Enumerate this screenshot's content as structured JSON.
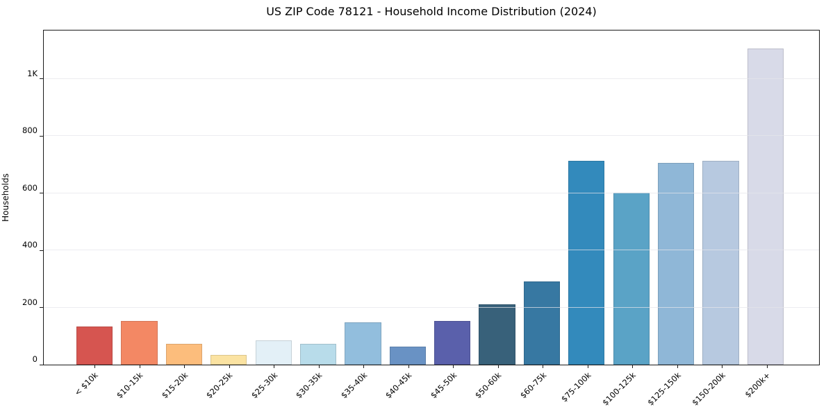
{
  "chart_data": {
    "type": "bar",
    "title": "US ZIP Code 78121 - Household Income Distribution (2024)",
    "xlabel": "",
    "ylabel": "Households",
    "categories": [
      "< $10k",
      "$10-15k",
      "$15-20k",
      "$20-25k",
      "$25-30k",
      "$30-35k",
      "$35-40k",
      "$40-45k",
      "$45-50k",
      "$50-60k",
      "$60-75k",
      "$75-100k",
      "$100-125k",
      "$125-150k",
      "$150-200k",
      "$200k+"
    ],
    "values": [
      133,
      152,
      74,
      34,
      86,
      73,
      149,
      63,
      153,
      211,
      291,
      714,
      601,
      706,
      713,
      1106
    ],
    "bar_colors": [
      "#d65550",
      "#f38864",
      "#fcbd7c",
      "#fbe3a2",
      "#e3f0f7",
      "#b8dcea",
      "#92bedd",
      "#6992c4",
      "#5a60ab",
      "#38617a",
      "#3778a2",
      "#338abc",
      "#5aa3c6",
      "#8fb7d7",
      "#b7c9e0",
      "#d8dae8"
    ],
    "yticks": [
      0,
      200,
      400,
      600,
      800,
      1000
    ],
    "ytick_labels": [
      "0",
      "200",
      "400",
      "600",
      "800",
      "1K"
    ],
    "ylim": [
      0,
      1169
    ],
    "grid": "horizontal",
    "legend": "none",
    "background": "#ffffff",
    "spine_color": "#1a1a1a",
    "gridline_color": "#e4e4ea"
  }
}
